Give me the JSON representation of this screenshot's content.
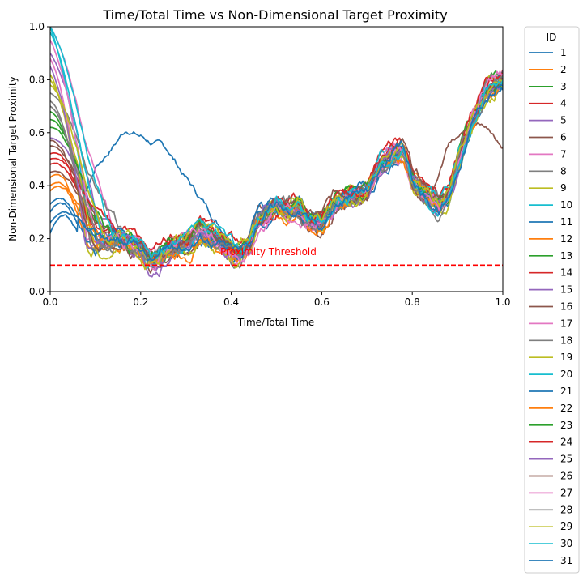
{
  "chart_data": {
    "type": "line",
    "title": "Time/Total Time vs Non-Dimensional Target Proximity",
    "xlabel": "Time/Total Time",
    "ylabel": "Non-Dimensional Target Proximity",
    "xlim": [
      0.0,
      1.0
    ],
    "ylim": [
      0.0,
      1.0
    ],
    "xticks": [
      "0.0",
      "0.2",
      "0.4",
      "0.6",
      "0.8",
      "1.0"
    ],
    "yticks": [
      "0.0",
      "0.2",
      "0.4",
      "0.6",
      "0.8",
      "1.0"
    ],
    "grid": false,
    "legend": {
      "title": "ID",
      "placement": "outside-right",
      "entries": [
        "1",
        "2",
        "3",
        "4",
        "5",
        "6",
        "7",
        "8",
        "9",
        "10",
        "11",
        "12",
        "13",
        "14",
        "15",
        "16",
        "17",
        "18",
        "19",
        "20",
        "21",
        "22",
        "23",
        "24",
        "25",
        "26",
        "27",
        "28",
        "29",
        "30",
        "31"
      ]
    },
    "threshold": {
      "y": 0.1,
      "label": "Proximity Threshold",
      "color": "#ff0000",
      "style": "dashed"
    },
    "palette": [
      "#1f77b4",
      "#ff7f0e",
      "#2ca02c",
      "#d62728",
      "#9467bd",
      "#8c564b",
      "#e377c2",
      "#7f7f7f",
      "#bcbd22",
      "#17becf"
    ],
    "common_path": {
      "x": [
        0.0,
        0.05,
        0.08,
        0.1,
        0.12,
        0.15,
        0.18,
        0.2,
        0.22,
        0.24,
        0.26,
        0.28,
        0.3,
        0.33,
        0.36,
        0.38,
        0.4,
        0.42,
        0.44,
        0.46,
        0.48,
        0.5,
        0.52,
        0.55,
        0.57,
        0.6,
        0.63,
        0.66,
        0.7,
        0.73,
        0.76,
        0.78,
        0.8,
        0.83,
        0.86,
        0.88,
        0.9,
        0.93,
        0.96,
        1.0
      ],
      "y": [
        0.6,
        0.3,
        0.18,
        0.17,
        0.18,
        0.2,
        0.18,
        0.17,
        0.12,
        0.13,
        0.16,
        0.17,
        0.18,
        0.22,
        0.21,
        0.19,
        0.16,
        0.15,
        0.18,
        0.28,
        0.3,
        0.33,
        0.3,
        0.32,
        0.27,
        0.26,
        0.34,
        0.36,
        0.38,
        0.48,
        0.52,
        0.53,
        0.42,
        0.36,
        0.32,
        0.36,
        0.48,
        0.62,
        0.74,
        0.8
      ]
    },
    "series": [
      {
        "start": 0.22,
        "offset": -0.01,
        "end": 0.78,
        "special": "outlier"
      },
      {
        "start": 0.43,
        "offset": -0.015,
        "end": 0.82
      },
      {
        "start": 0.68,
        "offset": 0.005,
        "end": 0.81
      },
      {
        "start": 0.52,
        "offset": 0.02,
        "end": 0.82
      },
      {
        "start": 0.9,
        "offset": -0.005,
        "end": 0.8
      },
      {
        "start": 0.55,
        "offset": -0.02,
        "end": 0.55,
        "special": "early_rise"
      },
      {
        "start": 1.0,
        "offset": -0.01,
        "end": 0.79
      },
      {
        "start": 0.75,
        "offset": 0.0,
        "end": 0.8
      },
      {
        "start": 0.82,
        "offset": 0.01,
        "end": 0.84
      },
      {
        "start": 1.0,
        "offset": 0.0,
        "end": 0.79
      },
      {
        "start": 0.3,
        "offset": 0.0,
        "end": 0.78
      },
      {
        "start": 0.38,
        "offset": -0.02,
        "end": 0.81
      },
      {
        "start": 0.65,
        "offset": 0.01,
        "end": 0.8
      },
      {
        "start": 0.48,
        "offset": 0.015,
        "end": 0.82
      },
      {
        "start": 0.58,
        "offset": -0.01,
        "end": 0.79
      },
      {
        "start": 0.45,
        "offset": 0.0,
        "end": 0.8
      },
      {
        "start": 0.88,
        "offset": 0.005,
        "end": 0.81
      },
      {
        "start": 0.72,
        "offset": 0.0,
        "end": 0.8
      },
      {
        "start": 0.8,
        "offset": -0.025,
        "end": 0.83
      },
      {
        "start": 0.98,
        "offset": 0.01,
        "end": 0.78
      },
      {
        "start": 0.33,
        "offset": 0.0,
        "end": 0.79
      },
      {
        "start": 0.4,
        "offset": -0.01,
        "end": 0.81
      },
      {
        "start": 0.62,
        "offset": 0.0,
        "end": 0.8
      },
      {
        "start": 0.5,
        "offset": 0.01,
        "end": 0.82
      },
      {
        "start": 0.85,
        "offset": -0.005,
        "end": 0.79
      },
      {
        "start": 0.57,
        "offset": 0.02,
        "end": 0.8
      },
      {
        "start": 0.95,
        "offset": 0.0,
        "end": 0.81
      },
      {
        "start": 0.7,
        "offset": -0.01,
        "end": 0.8
      },
      {
        "start": 0.78,
        "offset": 0.01,
        "end": 0.83
      },
      {
        "start": 1.0,
        "offset": 0.005,
        "end": 0.78
      },
      {
        "start": 0.26,
        "offset": 0.0,
        "end": 0.77
      }
    ]
  }
}
